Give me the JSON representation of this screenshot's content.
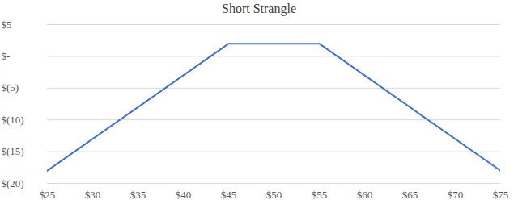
{
  "chart_data": {
    "type": "line",
    "title": "Short Strangle",
    "x": [
      25,
      45,
      55,
      75
    ],
    "values": [
      -18,
      2,
      2,
      -18
    ],
    "color": "#4472c4",
    "xlim": [
      25,
      75
    ],
    "xticks": [
      {
        "value": 25,
        "label": "$25"
      },
      {
        "value": 30,
        "label": "$30"
      },
      {
        "value": 35,
        "label": "$35"
      },
      {
        "value": 40,
        "label": "$40"
      },
      {
        "value": 45,
        "label": "$45"
      },
      {
        "value": 50,
        "label": "$50"
      },
      {
        "value": 55,
        "label": "$55"
      },
      {
        "value": 60,
        "label": "$60"
      },
      {
        "value": 65,
        "label": "$65"
      },
      {
        "value": 70,
        "label": "$70"
      },
      {
        "value": 75,
        "label": "$75"
      }
    ],
    "ylim": [
      -20,
      5
    ],
    "yticks": [
      {
        "value": 5,
        "label": "$5"
      },
      {
        "value": 0,
        "label": "$-"
      },
      {
        "value": -5,
        "label": "$(5)"
      },
      {
        "value": -10,
        "label": "$(10)"
      },
      {
        "value": -15,
        "label": "$(15)"
      },
      {
        "value": -20,
        "label": "$(20)"
      }
    ],
    "grid": true
  }
}
